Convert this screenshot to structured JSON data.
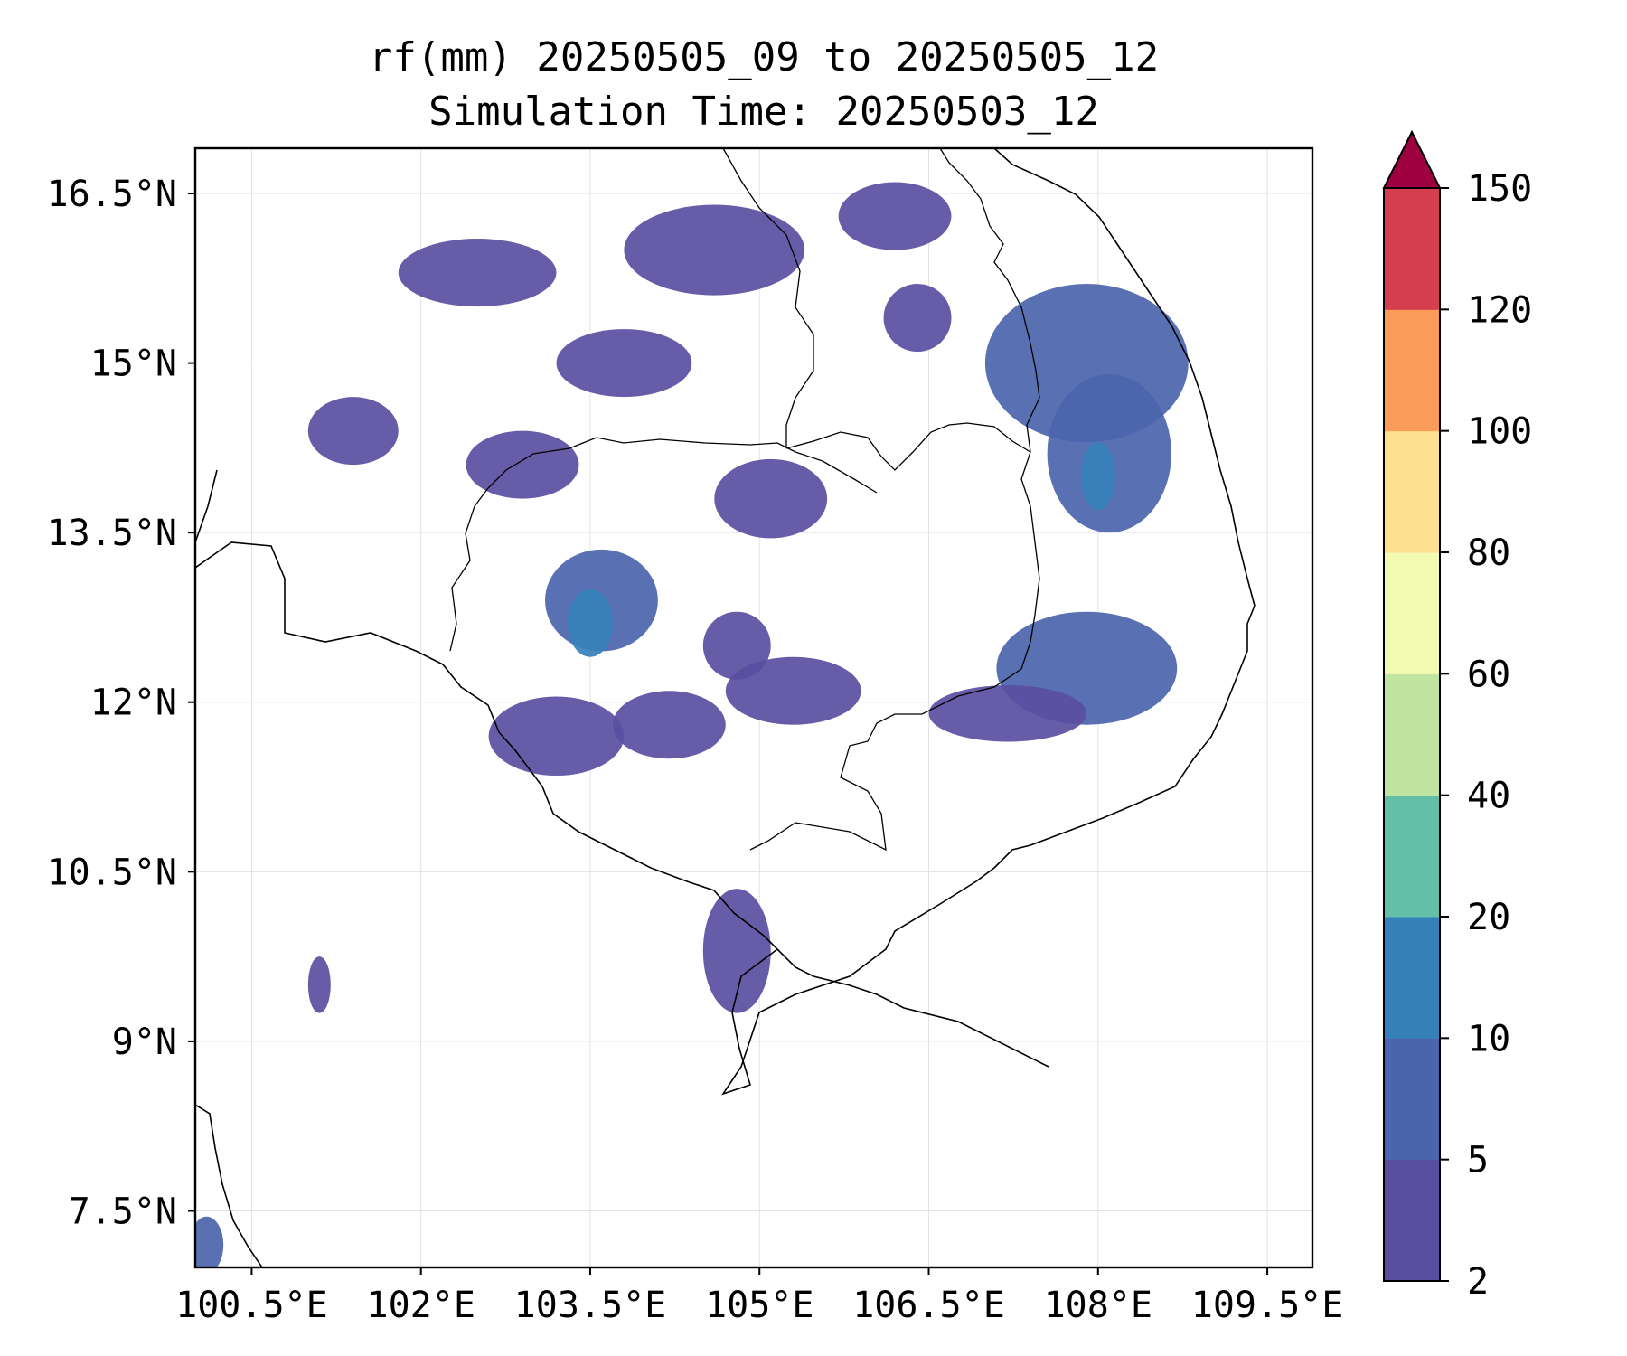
{
  "title": {
    "line1": "rf(mm) 20250505_09 to 20250505_12",
    "line2": "Simulation Time: 20250503_12"
  },
  "map": {
    "lon_range": [
      100.0,
      109.9
    ],
    "lat_range": [
      7.0,
      16.9
    ],
    "x_ticks": [
      {
        "value": 100.5,
        "label": "100.5°E"
      },
      {
        "value": 102.0,
        "label": "102°E"
      },
      {
        "value": 103.5,
        "label": "103.5°E"
      },
      {
        "value": 105.0,
        "label": "105°E"
      },
      {
        "value": 106.5,
        "label": "106.5°E"
      },
      {
        "value": 108.0,
        "label": "108°E"
      },
      {
        "value": 109.5,
        "label": "109.5°E"
      }
    ],
    "y_ticks": [
      {
        "value": 16.5,
        "label": "16.5°N"
      },
      {
        "value": 15.0,
        "label": "15°N"
      },
      {
        "value": 13.5,
        "label": "13.5°N"
      },
      {
        "value": 12.0,
        "label": "12°N"
      },
      {
        "value": 10.5,
        "label": "10.5°N"
      },
      {
        "value": 9.0,
        "label": "9°N"
      },
      {
        "value": 7.5,
        "label": "7.5°N"
      }
    ],
    "grid": true,
    "rain_regions": [
      {
        "lon": 103.6,
        "lat": 12.9,
        "rx": 0.5,
        "ry": 0.45,
        "level": 1
      },
      {
        "lon": 103.5,
        "lat": 12.7,
        "rx": 0.2,
        "ry": 0.3,
        "level": 2
      },
      {
        "lon": 103.2,
        "lat": 11.7,
        "rx": 0.6,
        "ry": 0.35,
        "level": 0
      },
      {
        "lon": 104.2,
        "lat": 11.8,
        "rx": 0.5,
        "ry": 0.3,
        "level": 0
      },
      {
        "lon": 105.3,
        "lat": 12.1,
        "rx": 0.6,
        "ry": 0.3,
        "level": 0
      },
      {
        "lon": 104.8,
        "lat": 12.5,
        "rx": 0.3,
        "ry": 0.3,
        "level": 0
      },
      {
        "lon": 107.9,
        "lat": 12.3,
        "rx": 0.8,
        "ry": 0.5,
        "level": 1
      },
      {
        "lon": 107.2,
        "lat": 11.9,
        "rx": 0.7,
        "ry": 0.25,
        "level": 0
      },
      {
        "lon": 107.9,
        "lat": 15.0,
        "rx": 0.9,
        "ry": 0.7,
        "level": 1
      },
      {
        "lon": 108.1,
        "lat": 14.2,
        "rx": 0.55,
        "ry": 0.7,
        "level": 1
      },
      {
        "lon": 108.0,
        "lat": 14.0,
        "rx": 0.15,
        "ry": 0.3,
        "level": 2
      },
      {
        "lon": 106.4,
        "lat": 15.4,
        "rx": 0.3,
        "ry": 0.3,
        "level": 0
      },
      {
        "lon": 104.8,
        "lat": 9.8,
        "rx": 0.3,
        "ry": 0.55,
        "level": 0
      },
      {
        "lon": 105.1,
        "lat": 13.8,
        "rx": 0.5,
        "ry": 0.35,
        "level": 0
      },
      {
        "lon": 104.6,
        "lat": 16.0,
        "rx": 0.8,
        "ry": 0.4,
        "level": 0
      },
      {
        "lon": 102.5,
        "lat": 15.8,
        "rx": 0.7,
        "ry": 0.3,
        "level": 0
      },
      {
        "lon": 101.4,
        "lat": 14.4,
        "rx": 0.4,
        "ry": 0.3,
        "level": 0
      },
      {
        "lon": 102.9,
        "lat": 14.1,
        "rx": 0.5,
        "ry": 0.3,
        "level": 0
      },
      {
        "lon": 106.2,
        "lat": 16.3,
        "rx": 0.5,
        "ry": 0.3,
        "level": 0
      },
      {
        "lon": 103.8,
        "lat": 15.0,
        "rx": 0.6,
        "ry": 0.3,
        "level": 0
      },
      {
        "lon": 101.1,
        "lat": 9.5,
        "rx": 0.1,
        "ry": 0.25,
        "level": 0
      },
      {
        "lon": 100.1,
        "lat": 7.2,
        "rx": 0.15,
        "ry": 0.25,
        "level": 1
      }
    ]
  },
  "colorbar": {
    "levels": [
      "2",
      "5",
      "10",
      "20",
      "40",
      "60",
      "80",
      "100",
      "120",
      "150"
    ],
    "colors": [
      "#5a4ea1",
      "#4b65ad",
      "#3680ba",
      "#64bfa9",
      "#bfe5a0",
      "#f3fab1",
      "#fde090",
      "#fa9b59",
      "#d53e4f",
      "#9e0142"
    ],
    "extend": "max"
  }
}
